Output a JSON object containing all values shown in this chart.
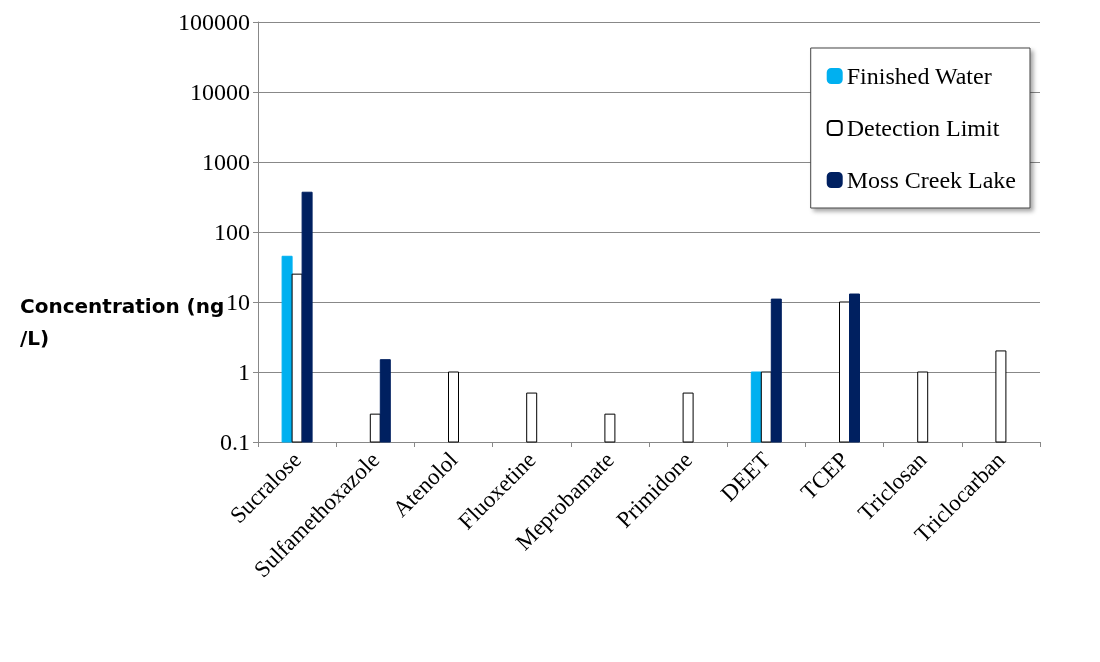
{
  "chart_data": {
    "type": "bar",
    "ylabel": "Concentration (ng/L)",
    "log": "y",
    "ylim": [
      0.1,
      100000
    ],
    "yticks": [
      0.1,
      1,
      10,
      100,
      1000,
      10000,
      100000
    ],
    "grid": "y",
    "legend": "top right",
    "categories": [
      "Sucralose",
      "Sulfamethoxazole",
      "Atenolol",
      "Fluoxetine",
      "Meprobamate",
      "Primidone",
      "DEET",
      "TCEP",
      "Triclosan",
      "Triclocarban"
    ],
    "series": [
      {
        "name": "Finished Water",
        "color": "#00b0f0",
        "values": [
          45,
          null,
          null,
          null,
          null,
          null,
          1,
          null,
          null,
          null
        ]
      },
      {
        "name": "Detection Limit",
        "color": "#ffffff",
        "values": [
          25,
          0.25,
          1,
          0.5,
          0.25,
          0.5,
          1,
          10,
          1,
          2
        ]
      },
      {
        "name": "Moss Creek Lake",
        "color": "#002060",
        "values": [
          370,
          1.5,
          null,
          null,
          null,
          null,
          11,
          13,
          null,
          null
        ]
      }
    ]
  }
}
